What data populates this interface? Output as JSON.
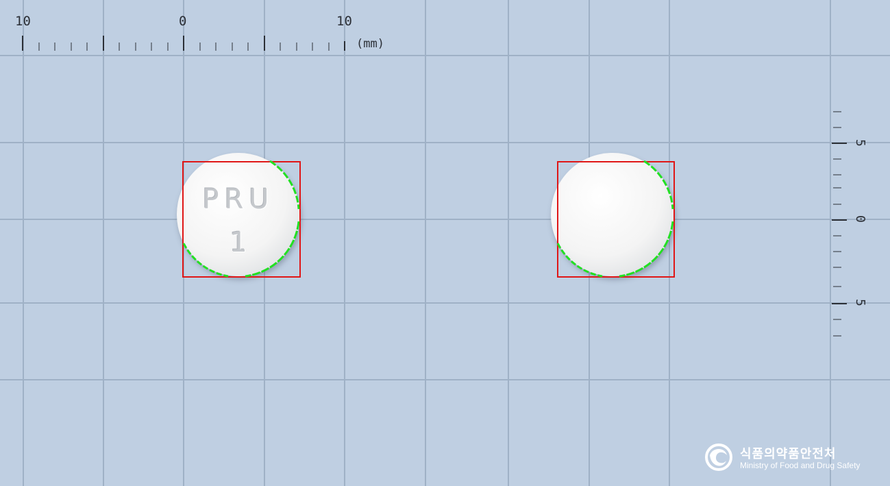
{
  "top_ruler": {
    "labels": [
      "10",
      "0",
      "10"
    ],
    "unit": "(mm)"
  },
  "side_ruler": {
    "labels": [
      "5",
      "0",
      "5"
    ]
  },
  "pills": [
    {
      "imprint_line1": "PRU",
      "imprint_line2": "1"
    },
    {
      "imprint_line1": "",
      "imprint_line2": ""
    }
  ],
  "logo": {
    "korean": "식품의약품안전처",
    "english": "Ministry of Food and Drug Safety"
  },
  "colors": {
    "background": "#bfcfe2",
    "grid": "#9fb1c6",
    "bounding_box": "#e01616",
    "contour": "#22e022"
  }
}
